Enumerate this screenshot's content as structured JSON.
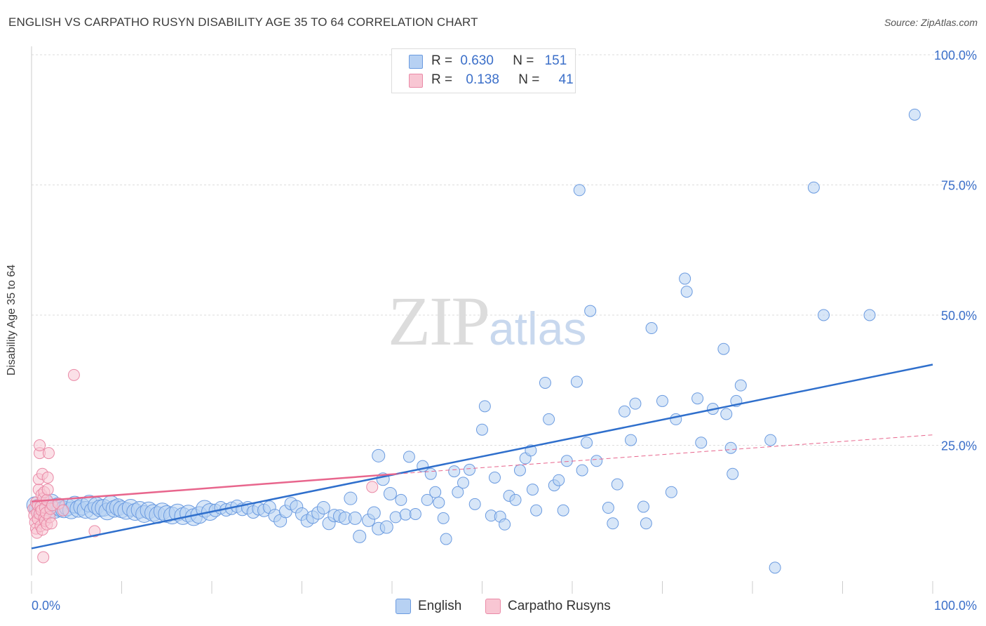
{
  "header": {
    "title": "ENGLISH VS CARPATHO RUSYN DISABILITY AGE 35 TO 64 CORRELATION CHART",
    "source": "Source: ZipAtlas.com"
  },
  "watermark": {
    "zip": "ZIP",
    "atlas": "atlas"
  },
  "legend": {
    "rows": [
      {
        "r_label": "R =",
        "r_value": "0.630",
        "n_label": "N =",
        "n_value": "151",
        "color": "#b7d1f3"
      },
      {
        "r_label": "R =",
        "r_value": "0.138",
        "n_label": "N =",
        "n_value": "41",
        "color": "#f8c6d3"
      }
    ]
  },
  "bottom_legend": [
    {
      "label": "English",
      "color": "#b7d1f3"
    },
    {
      "label": "Carpatho Rusyns",
      "color": "#f8c6d3"
    }
  ],
  "colors": {
    "english_fill": "#b7d1f3",
    "english_stroke": "#6b9be0",
    "english_line": "#2f6fcc",
    "rusyn_fill": "#f8c6d3",
    "rusyn_stroke": "#ea8aa7",
    "rusyn_line": "#e8668d",
    "tick_label": "#3b6fc9",
    "grid": "#dddddd"
  },
  "chart_data": {
    "type": "scatter",
    "title": "ENGLISH VS CARPATHO RUSYN DISABILITY AGE 35 TO 64 CORRELATION CHART",
    "xlabel": "",
    "ylabel": "Disability Age 35 to 64",
    "xlim": [
      0,
      100
    ],
    "ylim": [
      0,
      100
    ],
    "x_tick_labels": [
      "0.0%",
      "100.0%"
    ],
    "y_tick_labels": [
      "25.0%",
      "50.0%",
      "75.0%",
      "100.0%"
    ],
    "y_ticks": [
      25,
      50,
      75,
      100
    ],
    "grid": true,
    "legend_position": "top-center",
    "series": [
      {
        "name": "English",
        "trend": {
          "x": [
            0,
            100
          ],
          "y": [
            5.2,
            40.5
          ],
          "style": "solid"
        },
        "points": [
          [
            0.4,
            13.5
          ],
          [
            0.7,
            13.0
          ],
          [
            1.0,
            12.8
          ],
          [
            1.3,
            12.2
          ],
          [
            1.6,
            13.8
          ],
          [
            1.9,
            12.5
          ],
          [
            2.2,
            14.0
          ],
          [
            2.6,
            12.6
          ],
          [
            2.9,
            13.3
          ],
          [
            3.2,
            12.9
          ],
          [
            3.6,
            12.7
          ],
          [
            4.0,
            13.1
          ],
          [
            4.4,
            12.5
          ],
          [
            4.8,
            13.6
          ],
          [
            5.2,
            12.8
          ],
          [
            5.6,
            13.2
          ],
          [
            6.0,
            12.6
          ],
          [
            6.4,
            13.8
          ],
          [
            6.8,
            12.4
          ],
          [
            7.2,
            13.4
          ],
          [
            7.6,
            12.9
          ],
          [
            8.0,
            13.0
          ],
          [
            8.4,
            12.3
          ],
          [
            8.8,
            13.7
          ],
          [
            9.2,
            12.8
          ],
          [
            9.6,
            13.1
          ],
          [
            10.0,
            12.7
          ],
          [
            10.5,
            12.4
          ],
          [
            11.0,
            13.0
          ],
          [
            11.5,
            12.2
          ],
          [
            12.0,
            12.6
          ],
          [
            12.5,
            11.8
          ],
          [
            13.0,
            12.5
          ],
          [
            13.5,
            12.0
          ],
          [
            14.0,
            11.6
          ],
          [
            14.5,
            12.3
          ],
          [
            15.0,
            11.8
          ],
          [
            15.6,
            11.5
          ],
          [
            16.2,
            12.1
          ],
          [
            16.8,
            11.4
          ],
          [
            17.4,
            11.9
          ],
          [
            18.0,
            11.2
          ],
          [
            18.6,
            11.6
          ],
          [
            19.2,
            12.8
          ],
          [
            19.8,
            12.2
          ],
          [
            20.4,
            12.5
          ],
          [
            21.0,
            13.0
          ],
          [
            21.6,
            12.6
          ],
          [
            22.2,
            12.9
          ],
          [
            22.8,
            13.3
          ],
          [
            23.4,
            12.7
          ],
          [
            24.0,
            13.0
          ],
          [
            24.6,
            12.2
          ],
          [
            25.2,
            12.8
          ],
          [
            25.8,
            12.5
          ],
          [
            26.4,
            13.1
          ],
          [
            27.0,
            11.5
          ],
          [
            27.6,
            10.5
          ],
          [
            28.2,
            12.3
          ],
          [
            28.8,
            13.8
          ],
          [
            29.4,
            13.2
          ],
          [
            30.0,
            11.8
          ],
          [
            30.6,
            10.5
          ],
          [
            31.2,
            11.2
          ],
          [
            31.8,
            12.0
          ],
          [
            32.4,
            13.0
          ],
          [
            33.0,
            10.0
          ],
          [
            33.6,
            11.5
          ],
          [
            34.2,
            11.4
          ],
          [
            34.8,
            11.0
          ],
          [
            35.4,
            14.8
          ],
          [
            35.9,
            11.0
          ],
          [
            36.4,
            7.5
          ],
          [
            37.4,
            10.6
          ],
          [
            38.0,
            12.0
          ],
          [
            38.5,
            23.0
          ],
          [
            38.5,
            9.0
          ],
          [
            39.0,
            18.5
          ],
          [
            39.4,
            9.3
          ],
          [
            39.8,
            15.7
          ],
          [
            40.4,
            11.2
          ],
          [
            41.0,
            14.5
          ],
          [
            41.5,
            11.7
          ],
          [
            41.9,
            22.8
          ],
          [
            42.6,
            11.8
          ],
          [
            43.4,
            21.0
          ],
          [
            43.9,
            14.5
          ],
          [
            44.3,
            19.5
          ],
          [
            44.8,
            16.0
          ],
          [
            45.2,
            14.0
          ],
          [
            45.7,
            11.0
          ],
          [
            46.0,
            7.0
          ],
          [
            46.9,
            20.0
          ],
          [
            47.3,
            16.0
          ],
          [
            47.9,
            17.8
          ],
          [
            48.6,
            20.3
          ],
          [
            49.2,
            13.7
          ],
          [
            50.0,
            28.0
          ],
          [
            50.3,
            32.5
          ],
          [
            51.0,
            11.5
          ],
          [
            51.4,
            18.8
          ],
          [
            52.0,
            11.3
          ],
          [
            52.5,
            9.8
          ],
          [
            53.0,
            15.3
          ],
          [
            53.7,
            14.5
          ],
          [
            54.2,
            20.2
          ],
          [
            54.8,
            22.5
          ],
          [
            55.4,
            24.0
          ],
          [
            55.6,
            16.5
          ],
          [
            56.0,
            12.5
          ],
          [
            57.0,
            37.0
          ],
          [
            57.4,
            30.0
          ],
          [
            58.0,
            17.3
          ],
          [
            58.5,
            18.3
          ],
          [
            59.0,
            12.5
          ],
          [
            59.4,
            22.0
          ],
          [
            60.5,
            37.2
          ],
          [
            61.1,
            20.2
          ],
          [
            61.6,
            25.5
          ],
          [
            62.0,
            50.8
          ],
          [
            62.7,
            22.0
          ],
          [
            64.0,
            13.0
          ],
          [
            64.5,
            10.0
          ],
          [
            65.0,
            17.5
          ],
          [
            65.8,
            31.5
          ],
          [
            66.5,
            26.0
          ],
          [
            67.0,
            33.0
          ],
          [
            67.9,
            13.2
          ],
          [
            68.2,
            10.0
          ],
          [
            68.8,
            47.5
          ],
          [
            70.0,
            33.5
          ],
          [
            71.0,
            16.0
          ],
          [
            71.5,
            30.0
          ],
          [
            72.5,
            57.0
          ],
          [
            72.7,
            54.5
          ],
          [
            73.9,
            34.0
          ],
          [
            74.3,
            25.5
          ],
          [
            75.6,
            32.0
          ],
          [
            76.8,
            43.5
          ],
          [
            77.1,
            31.0
          ],
          [
            77.6,
            24.5
          ],
          [
            77.8,
            19.5
          ],
          [
            78.2,
            33.5
          ],
          [
            78.7,
            36.5
          ],
          [
            82.0,
            26.0
          ],
          [
            82.5,
            1.5
          ],
          [
            86.8,
            74.5
          ],
          [
            87.9,
            50.0
          ],
          [
            93.0,
            50.0
          ],
          [
            98.0,
            88.5
          ],
          [
            60.8,
            74.0
          ]
        ]
      },
      {
        "name": "Carpatho Rusyns",
        "trend": {
          "x": [
            0,
            40.5,
            100
          ],
          "y": [
            14.2,
            19.5,
            27.0
          ],
          "style": "solid-then-dashed"
        },
        "points": [
          [
            0.2,
            12.8
          ],
          [
            0.3,
            11.5
          ],
          [
            0.4,
            10.2
          ],
          [
            0.5,
            9.0
          ],
          [
            0.5,
            14.0
          ],
          [
            0.6,
            8.2
          ],
          [
            0.6,
            12.0
          ],
          [
            0.7,
            13.5
          ],
          [
            0.7,
            10.8
          ],
          [
            0.8,
            16.5
          ],
          [
            0.8,
            18.5
          ],
          [
            0.9,
            11.8
          ],
          [
            0.9,
            23.5
          ],
          [
            0.9,
            25.0
          ],
          [
            1.0,
            9.5
          ],
          [
            1.0,
            13.2
          ],
          [
            1.1,
            15.5
          ],
          [
            1.1,
            12.5
          ],
          [
            1.2,
            8.8
          ],
          [
            1.2,
            19.5
          ],
          [
            1.3,
            14.8
          ],
          [
            1.3,
            3.5
          ],
          [
            1.4,
            11.0
          ],
          [
            1.4,
            16.0
          ],
          [
            1.5,
            10.5
          ],
          [
            1.5,
            13.0
          ],
          [
            1.6,
            12.0
          ],
          [
            1.7,
            9.8
          ],
          [
            1.7,
            14.5
          ],
          [
            1.8,
            18.8
          ],
          [
            1.8,
            16.5
          ],
          [
            1.9,
            23.5
          ],
          [
            2.0,
            11.2
          ],
          [
            2.1,
            12.8
          ],
          [
            2.2,
            10.0
          ],
          [
            2.3,
            13.5
          ],
          [
            3.0,
            13.8
          ],
          [
            3.5,
            12.5
          ],
          [
            4.7,
            38.5
          ],
          [
            7.0,
            8.5
          ],
          [
            37.8,
            17.0
          ]
        ]
      }
    ]
  }
}
